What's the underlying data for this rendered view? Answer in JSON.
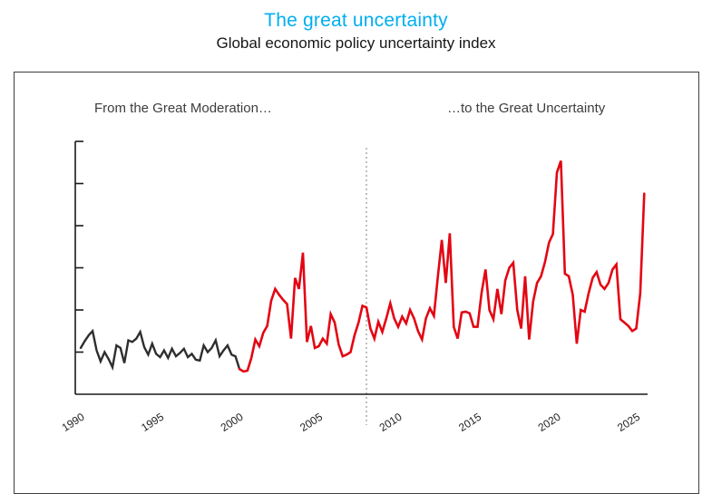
{
  "page": {
    "title": "The great uncertainty",
    "subtitle": "Global economic policy uncertainty index"
  },
  "annotations": {
    "left": "From the Great Moderation…",
    "right": "…to the Great Uncertainty"
  },
  "colors": {
    "title": "#00AEEF",
    "subtitle": "#161616",
    "moderation_series": "#2e2e2e",
    "uncertainty_series": "#e30613",
    "gold_marker": "#f5bc24",
    "gold_marker_dark": "#7d5f10",
    "dotted_divider": "#808080",
    "axis": "#1a1a1a",
    "panel_border": "#3f3f3f"
  },
  "chart_data": {
    "type": "line",
    "title": "The great uncertainty",
    "subtitle": "Global economic policy uncertainty index",
    "xlabel": "",
    "ylabel": "",
    "grid": false,
    "legend_position": "none",
    "x_ticks": [
      1990,
      1995,
      2000,
      2005,
      2010,
      2015,
      2020,
      2025
    ],
    "xlim": [
      1989.6,
      2026
    ],
    "ylim": [
      0,
      300
    ],
    "y_axis": {
      "labels_visible": false,
      "tick_values": [
        50,
        100,
        150,
        200,
        250,
        300
      ],
      "note": "y-axis shows unlabeled tick marks; values estimated on a 0-300 index scale"
    },
    "markers": {
      "gold_vertical_line_year": 2000,
      "dotted_vertical_line_year": 2008
    },
    "step_years": 0.25,
    "series": [
      {
        "name": "From the Great Moderation (1990–2000)",
        "color": "#2e2e2e",
        "start_year": 1990.0,
        "values": [
          55,
          63,
          70,
          75,
          52,
          39,
          50,
          42,
          32,
          58,
          55,
          37,
          64,
          62,
          66,
          74,
          56,
          47,
          60,
          48,
          44,
          52,
          43,
          54,
          45,
          49,
          54,
          44,
          48,
          41,
          40,
          58,
          50,
          55,
          64,
          45,
          52,
          58,
          47,
          45,
          30
        ]
      },
      {
        "name": "To the Great Uncertainty (2000–2025)",
        "color": "#e30613",
        "start_year": 2000.0,
        "values": [
          30,
          27,
          28,
          43,
          65,
          57,
          73,
          81,
          111,
          125,
          118,
          112,
          107,
          66,
          138,
          125,
          168,
          62,
          81,
          55,
          57,
          66,
          60,
          95,
          85,
          59,
          45,
          47,
          50,
          70,
          85,
          105,
          103,
          78,
          66,
          86,
          74,
          90,
          108,
          90,
          80,
          92,
          84,
          100,
          90,
          75,
          65,
          90,
          102,
          93,
          140,
          183,
          132,
          191,
          80,
          66,
          97,
          98,
          96,
          80,
          80,
          120,
          148,
          100,
          89,
          125,
          95,
          135,
          150,
          156,
          100,
          78,
          140,
          65,
          110,
          132,
          140,
          157,
          180,
          190,
          263,
          277,
          143,
          140,
          118,
          60,
          100,
          98,
          120,
          138,
          145,
          130,
          125,
          132,
          148,
          154,
          89,
          85,
          81,
          75,
          78,
          120,
          238
        ]
      }
    ]
  }
}
